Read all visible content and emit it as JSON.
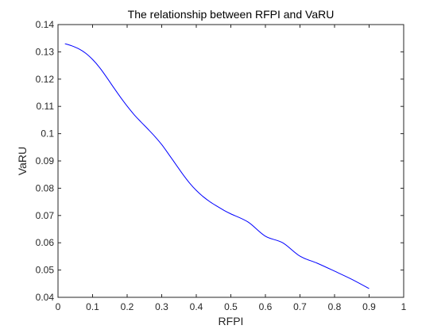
{
  "chart_data": {
    "type": "line",
    "title": "The relationship between RFPI and VaRU",
    "xlabel": "RFPI",
    "ylabel": "VaRU",
    "xlim": [
      0,
      1
    ],
    "ylim": [
      0.04,
      0.14
    ],
    "xticks": [
      0,
      0.1,
      0.2,
      0.3,
      0.4,
      0.5,
      0.6,
      0.7,
      0.8,
      0.9,
      1
    ],
    "xtick_labels": [
      "0",
      "0.1",
      "0.2",
      "0.3",
      "0.4",
      "0.5",
      "0.6",
      "0.7",
      "0.8",
      "0.9",
      "1"
    ],
    "yticks": [
      0.04,
      0.05,
      0.06,
      0.07,
      0.08,
      0.09,
      0.1,
      0.11,
      0.12,
      0.13,
      0.14
    ],
    "ytick_labels": [
      "0.04",
      "0.05",
      "0.06",
      "0.07",
      "0.08",
      "0.09",
      "0.1",
      "0.11",
      "0.12",
      "0.13",
      "0.14"
    ],
    "grid": false,
    "legend": "none",
    "series": [
      {
        "color": "#0000ff",
        "x": [
          0.02,
          0.04,
          0.06,
          0.08,
          0.1,
          0.12,
          0.14,
          0.16,
          0.18,
          0.2,
          0.22,
          0.24,
          0.26,
          0.28,
          0.3,
          0.32,
          0.34,
          0.36,
          0.38,
          0.4,
          0.42,
          0.44,
          0.46,
          0.48,
          0.5,
          0.55,
          0.6,
          0.65,
          0.7,
          0.75,
          0.8,
          0.85,
          0.9
        ],
        "y": [
          0.133,
          0.1322,
          0.1311,
          0.1295,
          0.1272,
          0.1243,
          0.1208,
          0.1171,
          0.1135,
          0.1101,
          0.107,
          0.1043,
          0.1017,
          0.099,
          0.096,
          0.0925,
          0.0889,
          0.0853,
          0.082,
          0.0792,
          0.0769,
          0.075,
          0.0734,
          0.0719,
          0.0706,
          0.0676,
          0.0624,
          0.06,
          0.0551,
          0.0525,
          0.0496,
          0.0466,
          0.0432
        ]
      }
    ]
  }
}
